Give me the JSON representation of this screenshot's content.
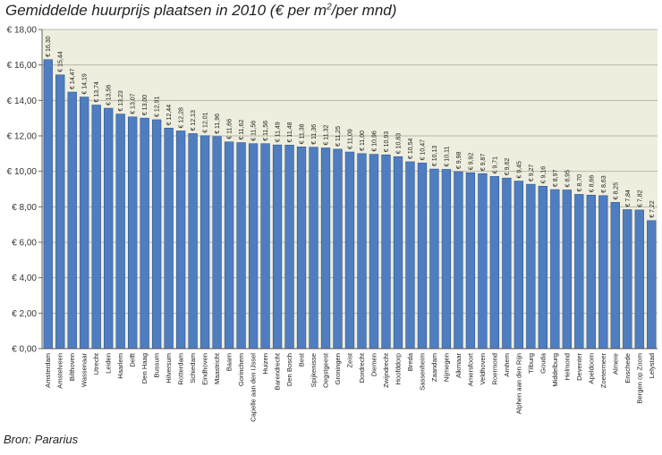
{
  "title_pre": "Gemiddelde huurprijs plaatsen in 2010 (€ per m",
  "title_sup": "2",
  "title_post": "/per mnd)",
  "source": "Bron: Pararius",
  "colors": {
    "bar": "#4f7dc0",
    "bar_edge": "#2f5a96",
    "plot_bg": "#efeede",
    "grid": "#b8b8a8"
  },
  "chart_data": {
    "type": "bar",
    "title": "Gemiddelde huurprijs plaatsen in 2010 (€ per m2/per mnd)",
    "ylim": [
      0,
      18
    ],
    "yticks": [
      0,
      2,
      4,
      6,
      8,
      10,
      12,
      14,
      16,
      18
    ],
    "ytick_labels": [
      "€ 0,00",
      "€ 2,00",
      "€ 4,00",
      "€ 6,00",
      "€ 8,00",
      "€ 10,00",
      "€ 12,00",
      "€ 14,00",
      "€ 16,00",
      "€ 18,00"
    ],
    "grid": true,
    "categories": [
      "Amsterdam",
      "Amstelveen",
      "Bilthoven",
      "Wassenaar",
      "Utrecht",
      "Leiden",
      "Haarlem",
      "Delft",
      "Den Haag",
      "Bussum",
      "Hilversum",
      "Rotterdam",
      "Schiedam",
      "Eindhoven",
      "Maastricht",
      "Baarn",
      "Gorinchem",
      "Capelle aan den IJssel",
      "Huizen",
      "Barendrecht",
      "Den Bosch",
      "Best",
      "Spijkenisse",
      "Oegstgeest",
      "Groningen",
      "Zeist",
      "Dordrecht",
      "Diemen",
      "Zwijndrecht",
      "Hoofddorp",
      "Breda",
      "Sassenheim",
      "Zaandam",
      "Nijmegen",
      "Alkmaar",
      "Amersfoort",
      "Veldhoven",
      "Roermond",
      "Arnhem",
      "Alphen aan den Rijn",
      "Tilburg",
      "Gouda",
      "Middelburg",
      "Helmond",
      "Deventer",
      "Apeldoorn",
      "Zoetermeer",
      "Almere",
      "Enschede",
      "Bergen op Zoom",
      "Lelystad"
    ],
    "values": [
      16.3,
      15.44,
      14.47,
      14.19,
      13.74,
      13.56,
      13.23,
      13.07,
      13.0,
      12.91,
      12.44,
      12.28,
      12.13,
      12.01,
      11.96,
      11.66,
      11.62,
      11.56,
      11.56,
      11.49,
      11.48,
      11.38,
      11.36,
      11.32,
      11.25,
      11.09,
      11.0,
      10.96,
      10.93,
      10.83,
      10.54,
      10.47,
      10.13,
      10.11,
      9.98,
      9.92,
      9.87,
      9.71,
      9.62,
      9.45,
      9.27,
      9.16,
      8.97,
      8.95,
      8.7,
      8.66,
      8.63,
      8.25,
      7.84,
      7.82,
      7.22
    ],
    "value_labels": [
      "€ 16,30",
      "€ 15,44",
      "€ 14,47",
      "€ 14,19",
      "€ 13,74",
      "€ 13,56",
      "€ 13,23",
      "€ 13,07",
      "€ 13,00",
      "€ 12,91",
      "€ 12,44",
      "€ 12,28",
      "€ 12,13",
      "€ 12,01",
      "€ 11,96",
      "€ 11,66",
      "€ 11,62",
      "€ 11,56",
      "€ 11,56",
      "€ 11,49",
      "€ 11,48",
      "€ 11,38",
      "€ 11,36",
      "€ 11,32",
      "€ 11,25",
      "€ 11,09",
      "€ 11,00",
      "€ 10,96",
      "€ 10,93",
      "€ 10,83",
      "€ 10,54",
      "€ 10,47",
      "€ 10,13",
      "€ 10,11",
      "€ 9,98",
      "€ 9,92",
      "€ 9,87",
      "€ 9,71",
      "€ 9,62",
      "€ 9,45",
      "€ 9,27",
      "€ 9,16",
      "€ 8,97",
      "€ 8,95",
      "€ 8,70",
      "€ 8,66",
      "€ 8,63",
      "€ 8,25",
      "€ 7,84",
      "€ 7,82",
      "€ 7,22"
    ]
  }
}
